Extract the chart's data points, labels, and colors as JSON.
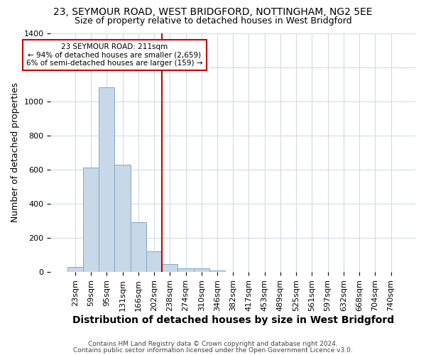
{
  "title": "23, SEYMOUR ROAD, WEST BRIDGFORD, NOTTINGHAM, NG2 5EE",
  "subtitle": "Size of property relative to detached houses in West Bridgford",
  "xlabel": "Distribution of detached houses by size in West Bridgford",
  "ylabel": "Number of detached properties",
  "bar_labels": [
    "23sqm",
    "59sqm",
    "95sqm",
    "131sqm",
    "166sqm",
    "202sqm",
    "238sqm",
    "274sqm",
    "310sqm",
    "346sqm",
    "382sqm",
    "417sqm",
    "453sqm",
    "489sqm",
    "525sqm",
    "561sqm",
    "597sqm",
    "632sqm",
    "668sqm",
    "704sqm",
    "740sqm"
  ],
  "bar_values": [
    30,
    610,
    1080,
    630,
    290,
    120,
    45,
    20,
    20,
    10,
    0,
    0,
    0,
    0,
    0,
    0,
    0,
    0,
    0,
    0,
    0
  ],
  "bar_color": "#c8d8e8",
  "bar_edge_color": "#7aaac8",
  "ylim": [
    0,
    1400
  ],
  "yticks": [
    0,
    200,
    400,
    600,
    800,
    1000,
    1200,
    1400
  ],
  "red_line_x": 5.5,
  "annotation_text": "23 SEYMOUR ROAD: 211sqm\n← 94% of detached houses are smaller (2,659)\n6% of semi-detached houses are larger (159) →",
  "annotation_box_color": "#ffffff",
  "annotation_border_color": "#cc0000",
  "red_line_color": "#cc0000",
  "title_fontsize": 10,
  "subtitle_fontsize": 9,
  "tick_fontsize": 8,
  "xlabel_fontsize": 10,
  "ylabel_fontsize": 9,
  "footer_line1": "Contains HM Land Registry data © Crown copyright and database right 2024.",
  "footer_line2": "Contains public sector information licensed under the Open Government Licence v3.0.",
  "background_color": "#ffffff",
  "plot_bg_color": "#ffffff",
  "grid_color": "#d0dce8"
}
